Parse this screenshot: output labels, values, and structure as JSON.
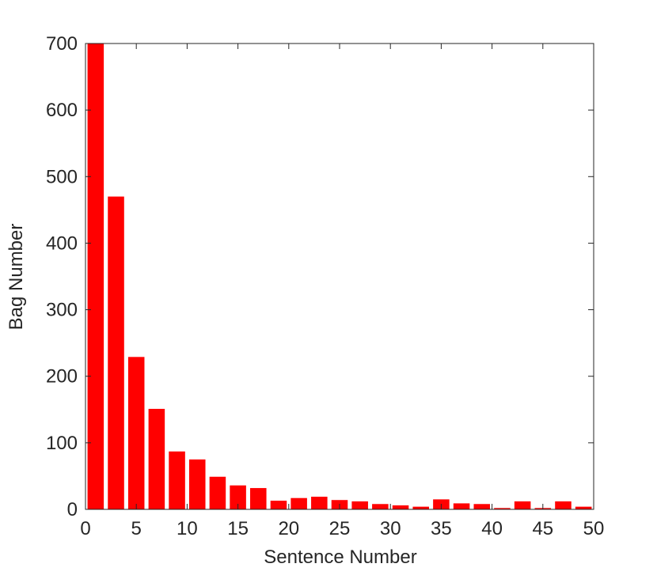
{
  "chart_data": {
    "type": "bar",
    "x": [
      1,
      3,
      5,
      7,
      9,
      11,
      13,
      15,
      17,
      19,
      21,
      23,
      25,
      27,
      29,
      31,
      33,
      35,
      37,
      39,
      41,
      43,
      45,
      47,
      49
    ],
    "values": [
      700,
      470,
      229,
      151,
      87,
      75,
      49,
      36,
      32,
      13,
      17,
      19,
      14,
      12,
      8,
      6,
      4,
      15,
      9,
      8,
      2,
      12,
      2,
      12,
      4
    ],
    "color": "#ff0000",
    "xlabel": "Sentence Number",
    "ylabel": "Bag Number",
    "xlim": [
      0,
      50
    ],
    "xticks": [
      0,
      5,
      10,
      15,
      20,
      25,
      30,
      35,
      40,
      45,
      50
    ],
    "ylim": [
      0,
      700
    ],
    "yticks": [
      0,
      100,
      200,
      300,
      400,
      500,
      600,
      700
    ],
    "grid": false
  }
}
